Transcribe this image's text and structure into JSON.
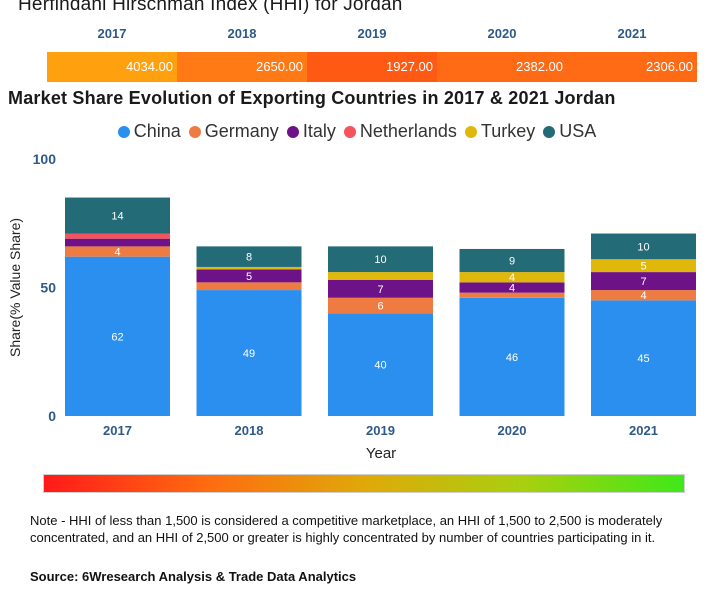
{
  "hhi_title": "Herfindahl Hirschman Index (HHI) for Jordan",
  "hhi": [
    {
      "year": "2017",
      "value": "4034.00",
      "color": "#ffa10f"
    },
    {
      "year": "2018",
      "value": "2650.00",
      "color": "#ff7a14"
    },
    {
      "year": "2019",
      "value": "1927.00",
      "color": "#ff5a14"
    },
    {
      "year": "2020",
      "value": "2382.00",
      "color": "#ff6a14"
    },
    {
      "year": "2021",
      "value": "2306.00",
      "color": "#ff6a14"
    }
  ],
  "chart_data": {
    "type": "bar",
    "stacked": true,
    "title": "Market Share Evolution of Exporting Countries in 2017 & 2021 Jordan",
    "xlabel": "Year",
    "ylabel": "Share(% Value Share)",
    "ylim": [
      0,
      100
    ],
    "yticks": [
      0,
      50,
      100
    ],
    "categories": [
      "2017",
      "2018",
      "2019",
      "2020",
      "2021"
    ],
    "series": [
      {
        "name": "China",
        "color": "#2b8ff0",
        "values": [
          62,
          49,
          40,
          46,
          45
        ],
        "labels": [
          "62",
          "49",
          "40",
          "46",
          "45"
        ]
      },
      {
        "name": "Germany",
        "color": "#ee7c42",
        "values": [
          4,
          3,
          6,
          2,
          4
        ],
        "labels": [
          "4",
          "",
          "6",
          "",
          "4"
        ]
      },
      {
        "name": "Italy",
        "color": "#6e1287",
        "values": [
          3,
          5,
          7,
          4,
          7
        ],
        "labels": [
          "",
          "5",
          "7",
          "4",
          "7"
        ]
      },
      {
        "name": "Netherlands",
        "color": "#f3545e",
        "values": [
          2,
          0,
          0,
          0,
          0
        ],
        "labels": [
          "",
          "",
          "",
          "",
          ""
        ]
      },
      {
        "name": "Turkey",
        "color": "#e0b80c",
        "values": [
          0,
          1,
          3,
          4,
          5
        ],
        "labels": [
          "",
          "",
          "",
          "4",
          "5"
        ]
      },
      {
        "name": "USA",
        "color": "#246b78",
        "values": [
          14,
          8,
          10,
          9,
          10
        ],
        "labels": [
          "14",
          "8",
          "10",
          "9",
          "10"
        ]
      }
    ],
    "legend_position": "top"
  },
  "note": "Note - HHI of less than 1,500 is considered a competitive marketplace, an HHI of 1,500 to 2,500 is moderately concentrated, and an HHI of 2,500 or greater is highly concentrated by number of countries participating in it.",
  "source": "Source: 6Wresearch Analysis & Trade Data Analytics"
}
